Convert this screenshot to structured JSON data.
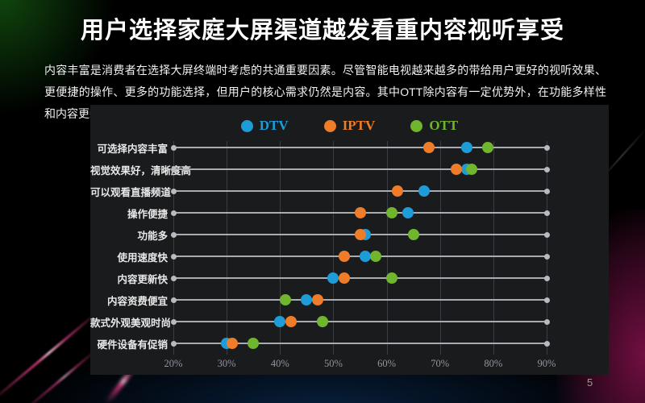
{
  "slide": {
    "title": "用户选择家庭大屏渠道越发看重内容视听享受",
    "body": "内容丰富是消费者在选择大屏终端时考虑的共通重要因素。尽管智能电视越来越多的带给用户更好的视听效果、更便捷的操作、更多的功能选择，但用户的核心需求仍然是内容。其中OTT除内容有一定优势外，在功能多样性和内容更新快方面也有显著优势。",
    "page_number": "5"
  },
  "colors": {
    "dtv": "#1e9cd7",
    "iptv": "#ee7c28",
    "ott": "#6fb52d",
    "panel_background": "#1a1b1d",
    "row_line": "#a8adb3",
    "gridline": "#3a3e44",
    "tick_text": "#8f969e"
  },
  "chart_data": {
    "type": "scatter",
    "subtype": "horizontal-dot-plot",
    "title": "",
    "xlabel": "",
    "ylabel": "",
    "xlim": [
      20,
      90
    ],
    "x_ticks": [
      "20%",
      "30%",
      "40%",
      "50%",
      "60%",
      "70%",
      "80%",
      "90%"
    ],
    "grid": "vertical",
    "legend_position": "top-center",
    "categories": [
      "可选择内容丰富",
      "视觉效果好，清晰度高",
      "可以观看直播频道",
      "操作便捷",
      "功能多",
      "使用速度快",
      "内容更新快",
      "内容资费便宜",
      "款式外观美观时尚",
      "硬件设备有促销"
    ],
    "series": [
      {
        "name": "DTV",
        "color": "#1e9cd7",
        "values": [
          75,
          75,
          67,
          64,
          56,
          56,
          50,
          45,
          40,
          30
        ]
      },
      {
        "name": "IPTV",
        "color": "#ee7c28",
        "values": [
          68,
          73,
          62,
          55,
          55,
          52,
          52,
          47,
          42,
          31
        ]
      },
      {
        "name": "OTT",
        "color": "#6fb52d",
        "values": [
          79,
          76,
          null,
          61,
          65,
          58,
          61,
          41,
          48,
          35
        ]
      }
    ]
  }
}
